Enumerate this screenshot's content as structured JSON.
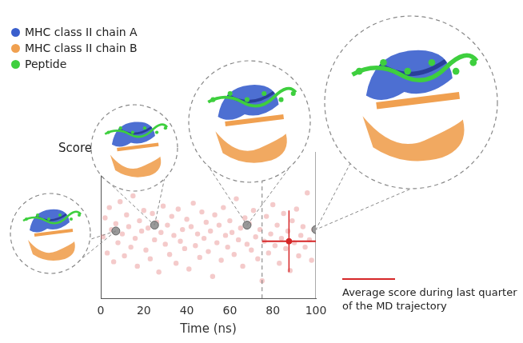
{
  "chart_data": {
    "type": "scatter",
    "xlabel": "Time (ns)",
    "ylabel": "Score",
    "xlim": [
      0,
      100
    ],
    "xticks": [
      0,
      20,
      40,
      60,
      80,
      100
    ],
    "ylim": [
      0,
      1
    ],
    "yticks": [],
    "tick_labels": "x",
    "grid": false,
    "series": [
      {
        "name": "Score",
        "color": "#e06666",
        "marker": "circle",
        "x": [
          1,
          2,
          3,
          4,
          5,
          6,
          7,
          8,
          9,
          10,
          11,
          12,
          13,
          14,
          15,
          16,
          17,
          18,
          19,
          20,
          21,
          22,
          23,
          24,
          25,
          26,
          27,
          28,
          29,
          30,
          31,
          32,
          33,
          34,
          35,
          36,
          37,
          38,
          39,
          40,
          41,
          42,
          43,
          44,
          45,
          46,
          47,
          48,
          49,
          50,
          51,
          52,
          53,
          54,
          55,
          56,
          57,
          58,
          59,
          60,
          61,
          62,
          63,
          64,
          65,
          66,
          67,
          68,
          69,
          70,
          71,
          72,
          73,
          74,
          75,
          76,
          77,
          78,
          79,
          80,
          81,
          82,
          83,
          84,
          85,
          86,
          87,
          88,
          89,
          90,
          91,
          92,
          93,
          94,
          95,
          96,
          97,
          98,
          99
        ],
        "values": [
          0.42,
          0.55,
          0.31,
          0.62,
          0.47,
          0.25,
          0.51,
          0.38,
          0.66,
          0.44,
          0.29,
          0.57,
          0.49,
          0.35,
          0.7,
          0.41,
          0.22,
          0.53,
          0.46,
          0.6,
          0.33,
          0.48,
          0.27,
          0.58,
          0.4,
          0.52,
          0.18,
          0.45,
          0.63,
          0.37,
          0.5,
          0.3,
          0.56,
          0.43,
          0.24,
          0.61,
          0.39,
          0.47,
          0.34,
          0.54,
          0.2,
          0.49,
          0.65,
          0.36,
          0.44,
          0.28,
          0.59,
          0.41,
          0.52,
          0.32,
          0.46,
          0.15,
          0.57,
          0.38,
          0.5,
          0.26,
          0.62,
          0.43,
          0.35,
          0.53,
          0.45,
          0.3,
          0.68,
          0.4,
          0.48,
          0.22,
          0.55,
          0.37,
          0.51,
          0.33,
          0.6,
          0.42,
          0.27,
          0.47,
          0.12,
          0.39,
          0.56,
          0.31,
          0.44,
          0.64,
          0.36,
          0.5,
          0.24,
          0.41,
          0.58,
          0.34,
          0.46,
          0.19,
          0.53,
          0.38,
          0.61,
          0.29,
          0.43,
          0.49,
          0.35,
          0.72,
          0.4,
          0.26,
          0.47
        ]
      }
    ],
    "snapshots": {
      "color": "#999999",
      "x": [
        7,
        25,
        68,
        100
      ],
      "values": [
        0.46,
        0.5,
        0.5,
        0.47
      ]
    },
    "average": {
      "x": 87.5,
      "y": 0.39,
      "x_range": [
        75,
        100
      ],
      "y_error": 0.21,
      "color": "#d62728",
      "label": "Average score during last quarter of the MD trajectory"
    }
  },
  "structure_legend": [
    {
      "name": "MHC class II chain A",
      "color": "#3a5fcd"
    },
    {
      "name": "MHC class II chain B",
      "color": "#f0a050"
    },
    {
      "name": "Peptide",
      "color": "#3ecf3e"
    }
  ]
}
